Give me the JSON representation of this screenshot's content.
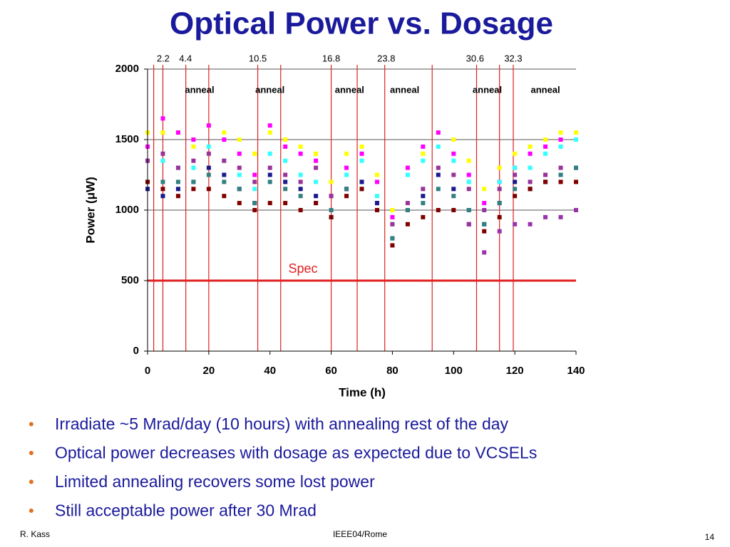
{
  "chart_data": {
    "type": "scatter",
    "title": "Optical Power vs. Dosage",
    "x_label": "Time (h)",
    "y_label": "Power (μW)",
    "xlim": [
      0,
      140
    ],
    "xticks": [
      0,
      20,
      40,
      60,
      80,
      100,
      120,
      140
    ],
    "ylim": [
      0,
      2000
    ],
    "yticks": [
      0,
      500,
      1000,
      1500,
      2000
    ],
    "grid": true,
    "x": [
      0,
      5,
      10,
      15,
      20,
      25,
      30,
      35,
      40,
      45,
      50,
      55,
      60,
      65,
      70,
      75,
      80,
      85,
      90,
      95,
      100,
      105,
      110,
      115,
      120,
      125,
      130,
      135,
      140
    ],
    "series": [
      {
        "color": "#ffff00",
        "values": [
          1550,
          1550,
          1550,
          1450,
          1600,
          1550,
          1500,
          1400,
          1550,
          1500,
          1450,
          1400,
          1200,
          1400,
          1450,
          1250,
          1000,
          1300,
          1400,
          1550,
          1500,
          1350,
          1150,
          1300,
          1400,
          1450,
          1500,
          1550,
          1550
        ]
      },
      {
        "color": "#ff00ff",
        "values": [
          1450,
          1650,
          1550,
          1500,
          1600,
          1500,
          1400,
          1250,
          1600,
          1450,
          1400,
          1350,
          1100,
          1300,
          1400,
          1200,
          950,
          1300,
          1450,
          1550,
          1400,
          1250,
          1050,
          1200,
          1300,
          1400,
          1450,
          1500,
          1500
        ]
      },
      {
        "color": "#33ffff",
        "values": [
          1350,
          1350,
          1300,
          1300,
          1450,
          1350,
          1250,
          1150,
          1400,
          1350,
          1250,
          1200,
          1000,
          1250,
          1350,
          1100,
          900,
          1250,
          1350,
          1450,
          1350,
          1200,
          1000,
          1200,
          1300,
          1300,
          1400,
          1450,
          1500
        ]
      },
      {
        "color": "#993399",
        "values": [
          1350,
          1400,
          1300,
          1350,
          1400,
          1350,
          1300,
          1200,
          1300,
          1250,
          1200,
          1300,
          1100,
          1150,
          1200,
          1050,
          900,
          1050,
          1150,
          1300,
          1250,
          1150,
          1000,
          1150,
          1250,
          1200,
          1250,
          1300,
          1300
        ]
      },
      {
        "color": "#1a1a8c",
        "values": [
          1150,
          1100,
          1150,
          1200,
          1300,
          1250,
          1150,
          1050,
          1250,
          1200,
          1150,
          1100,
          950,
          1150,
          1200,
          1050,
          800,
          1000,
          1100,
          1250,
          1150,
          1000,
          900,
          1050,
          1200,
          1150,
          1200,
          1250,
          1300
        ]
      },
      {
        "color": "#338080",
        "values": [
          1200,
          1200,
          1200,
          1200,
          1250,
          1200,
          1150,
          1050,
          1200,
          1150,
          1100,
          1050,
          1000,
          1150,
          1150,
          1000,
          800,
          1000,
          1050,
          1150,
          1100,
          1000,
          900,
          1050,
          1150,
          1150,
          1200,
          1250,
          1300
        ]
      },
      {
        "color": "#800000",
        "values": [
          1200,
          1150,
          1100,
          1150,
          1150,
          1100,
          1050,
          1000,
          1050,
          1050,
          1000,
          1050,
          950,
          1100,
          1150,
          1000,
          750,
          900,
          950,
          1000,
          1000,
          900,
          850,
          950,
          1100,
          1150,
          1200,
          1200,
          1200
        ]
      },
      {
        "color": "#9933aa",
        "values": [
          null,
          null,
          null,
          null,
          null,
          null,
          null,
          null,
          null,
          null,
          null,
          null,
          null,
          null,
          null,
          null,
          null,
          null,
          null,
          null,
          null,
          900,
          700,
          850,
          900,
          900,
          950,
          950,
          1000
        ]
      }
    ],
    "irradiation_lines": {
      "color": "#dd2222",
      "x": [
        2,
        5,
        12.5,
        20,
        36,
        43.5,
        60,
        68.5,
        77.5,
        93,
        107.5,
        115,
        119.5
      ]
    },
    "dose_labels": {
      "x": [
        5.1,
        12.4,
        36,
        60,
        78,
        107,
        119.5
      ],
      "values": [
        2.2,
        4.4,
        10.5,
        16.8,
        23.8,
        30.6,
        32.3
      ]
    },
    "anneal_labels": [
      {
        "x": 17,
        "text": "anneal"
      },
      {
        "x": 40,
        "text": "anneal"
      },
      {
        "x": 66,
        "text": "anneal"
      },
      {
        "x": 84,
        "text": "anneal"
      },
      {
        "x": 111,
        "text": "anneal"
      },
      {
        "x": 130,
        "text": "anneal"
      }
    ],
    "spec": {
      "value": 500,
      "label": "Spec",
      "color": "#e02020"
    }
  },
  "bullets": [
    "Irradiate ~5 Mrad/day (10 hours) with annealing rest of the day",
    "Optical power decreases with dosage as expected due to VCSELs",
    "Limited annealing recovers some lost power",
    "Still acceptable power after 30 Mrad"
  ],
  "footer": {
    "left": "R. Kass",
    "center": "IEEE04/Rome",
    "right": "14"
  }
}
